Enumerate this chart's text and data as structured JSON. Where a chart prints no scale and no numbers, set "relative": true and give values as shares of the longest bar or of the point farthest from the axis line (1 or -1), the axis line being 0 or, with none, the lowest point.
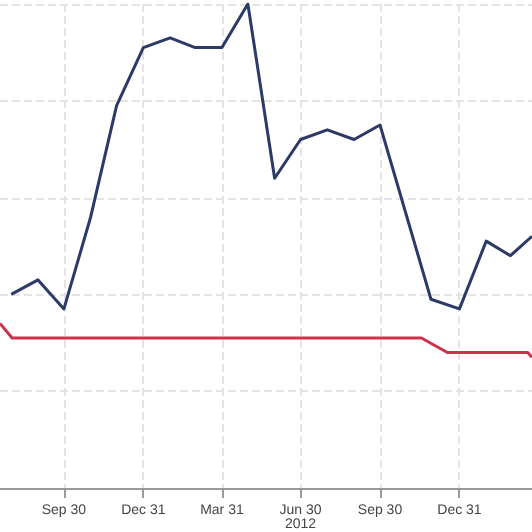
{
  "chart_data": {
    "type": "line",
    "relative": true,
    "grid": true,
    "marker": "none",
    "line_style": "solid",
    "xlim": [
      "2011-07-18",
      "2013-03-25"
    ],
    "xticks": [
      {
        "value": "2011-09-30",
        "label": "Sep 30"
      },
      {
        "value": "2011-12-31",
        "label": "Dec 31"
      },
      {
        "value": "2012-03-31",
        "label": "Mar 31"
      },
      {
        "value": "2012-06-30",
        "label": "Jun 30\n2012"
      },
      {
        "value": "2012-09-30",
        "label": "Sep 30"
      },
      {
        "value": "2012-12-31",
        "label": "Dec 31"
      }
    ],
    "series": [
      {
        "color": "#2b3a67",
        "x": [
          "2011-07-31",
          "2011-08-31",
          "2011-09-30",
          "2011-10-31",
          "2011-11-30",
          "2011-12-31",
          "2012-01-31",
          "2012-02-29",
          "2012-03-31",
          "2012-04-30",
          "2012-05-31",
          "2012-06-30",
          "2012-07-31",
          "2012-08-31",
          "2012-09-30",
          "2012-11-28",
          "2012-12-31",
          "2013-01-31",
          "2013-02-28",
          "2013-03-25"
        ],
        "values": [
          0.4,
          0.43,
          0.37,
          0.56,
          0.79,
          0.91,
          0.93,
          0.91,
          0.91,
          1,
          0.64,
          0.72,
          0.74,
          0.72,
          0.75,
          0.39,
          0.37,
          0.51,
          0.48,
          0.52
        ]
      },
      {
        "color": "#d0314a",
        "x": [
          "2011-07-18",
          "2011-08-01",
          "2012-11-17",
          "2012-12-17",
          "2013-03-20",
          "2013-03-25"
        ],
        "values": [
          0.34,
          0.31,
          0.31,
          0.28,
          0.28,
          0.27
        ]
      }
    ]
  }
}
